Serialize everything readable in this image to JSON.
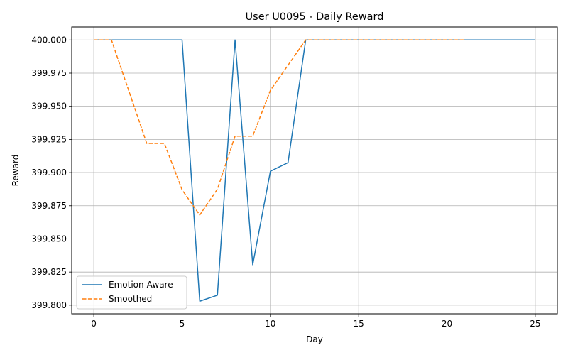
{
  "chart_data": {
    "type": "line",
    "title": "User U0095 - Daily Reward",
    "xlabel": "Day",
    "ylabel": "Reward",
    "xlim": [
      -1.25,
      26.25
    ],
    "ylim": [
      399.7935,
      400.0098
    ],
    "xticks": [
      0,
      5,
      10,
      15,
      20,
      25
    ],
    "xtick_labels": [
      "0",
      "5",
      "10",
      "15",
      "20",
      "25"
    ],
    "yticks": [
      399.8,
      399.825,
      399.85,
      399.875,
      399.9,
      399.925,
      399.95,
      399.975,
      400.0
    ],
    "ytick_labels": [
      "399.800",
      "399.825",
      "399.850",
      "399.875",
      "399.900",
      "399.925",
      "399.950",
      "399.975",
      "400.000"
    ],
    "grid": true,
    "legend_position": "lower-left",
    "series": [
      {
        "name": "Emotion-Aware",
        "color": "#1f77b4",
        "style": "solid",
        "x": [
          0,
          1,
          2,
          3,
          4,
          5,
          6,
          7,
          8,
          9,
          10,
          11,
          12,
          13,
          14,
          15,
          16,
          17,
          18,
          19,
          20,
          21,
          22,
          23,
          24,
          25
        ],
        "y": [
          400.0,
          400.0,
          400.0,
          400.0,
          400.0,
          400.0,
          399.803,
          399.8075,
          400.0,
          399.8305,
          399.901,
          399.9075,
          400.0,
          400.0,
          400.0,
          400.0,
          400.0,
          400.0,
          400.0,
          400.0,
          400.0,
          400.0,
          400.0,
          400.0,
          400.0,
          400.0
        ]
      },
      {
        "name": "Smoothed",
        "color": "#ff7f0e",
        "style": "dashed",
        "x": [
          0,
          1,
          2,
          3,
          4,
          5,
          6,
          7,
          8,
          9,
          10,
          11,
          12,
          13,
          14,
          15,
          16,
          17,
          18,
          19,
          20,
          21
        ],
        "y": [
          400.0,
          400.0,
          399.961,
          399.922,
          399.922,
          399.887,
          399.868,
          399.8875,
          399.9275,
          399.9275,
          399.962,
          399.981,
          400.0,
          400.0,
          400.0,
          400.0,
          400.0,
          400.0,
          400.0,
          400.0,
          400.0,
          400.0
        ]
      }
    ]
  }
}
